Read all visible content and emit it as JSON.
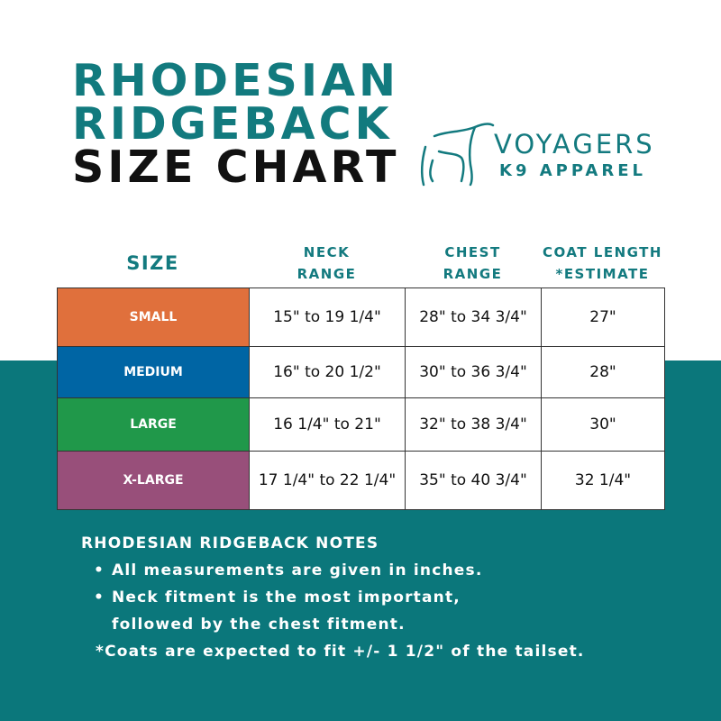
{
  "title": {
    "line1": "RHODESIAN",
    "line2": "RIDGEBACK",
    "line3": "SIZE CHART"
  },
  "logo": {
    "name": "VOYAGERS",
    "sub": "K9 APPAREL",
    "icon": "greyhound-outline-icon"
  },
  "colors": {
    "teal": "#0b777b",
    "small": "#e0703c",
    "medium": "#0065a4",
    "large": "#20984a",
    "xlarge": "#984f7a"
  },
  "table": {
    "headers": {
      "size": "SIZE",
      "neck": [
        "NECK",
        "RANGE"
      ],
      "chest": [
        "CHEST",
        "RANGE"
      ],
      "coat": [
        "COAT LENGTH",
        "*ESTIMATE"
      ]
    },
    "rows": [
      {
        "size": "SMALL",
        "neck": "15\" to 19 1/4\"",
        "chest": "28\" to 34 3/4\"",
        "coat": "27\""
      },
      {
        "size": "MEDIUM",
        "neck": "16\" to 20 1/2\"",
        "chest": "30\" to 36 3/4\"",
        "coat": "28\""
      },
      {
        "size": "LARGE",
        "neck": "16 1/4\" to 21\"",
        "chest": "32\" to 38 3/4\"",
        "coat": "30\""
      },
      {
        "size": "X-LARGE",
        "neck": "17 1/4\" to 22 1/4\"",
        "chest": "35\" to 40 3/4\"",
        "coat": "32 1/4\""
      }
    ]
  },
  "notes": {
    "heading": "RHODESIAN RIDGEBACK NOTES",
    "items": [
      "All measurements are given in inches.",
      "Neck fitment is the most important,"
    ],
    "continuation": "followed by the chest fitment.",
    "footnote": "*Coats are expected to fit +/- 1 1/2\" of the tailset."
  }
}
